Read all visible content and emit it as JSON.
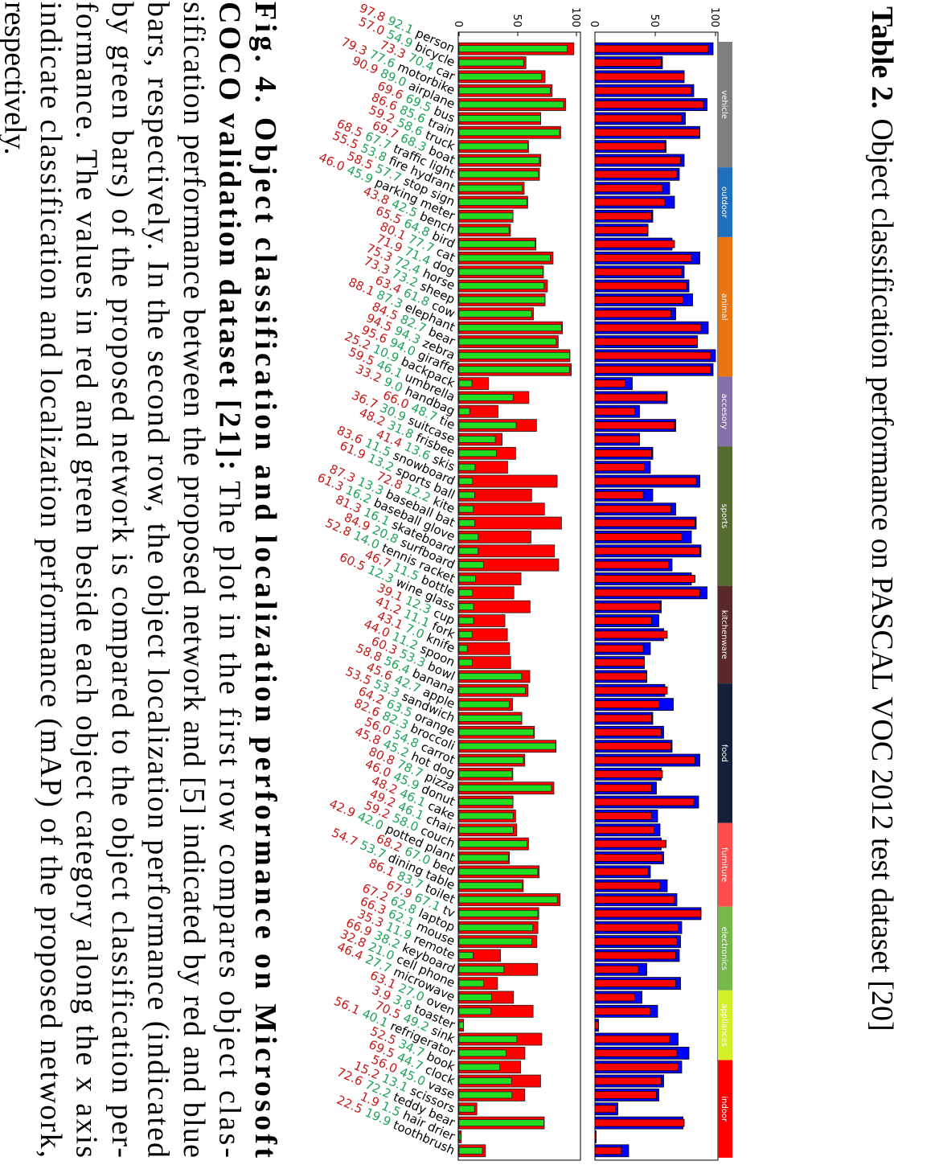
{
  "title": {
    "label": "Table 2.",
    "text": "Object classification performance on PASCAL VOC 2012 test dataset [20]"
  },
  "chart_data": [
    {
      "type": "grouped_bar",
      "series": [
        {
          "color": "#0000ff"
        },
        {
          "color": "#ff0000"
        }
      ],
      "ylim": [
        0,
        100
      ],
      "yticks": [
        0,
        50,
        100
      ],
      "groups": [
        {
          "name": "vehicle",
          "color": "#808080",
          "values": [
            [
              98,
              94
            ],
            [
              56,
              55
            ],
            [
              74,
              74
            ],
            [
              82,
              80
            ],
            [
              93,
              90
            ],
            [
              75,
              72
            ],
            [
              87,
              87
            ],
            [
              59,
              58
            ],
            [
              74,
              71
            ]
          ]
        },
        {
          "name": "outdoor",
          "color": "#1f6fbf",
          "values": [
            [
              70,
              68
            ],
            [
              62,
              56
            ],
            [
              66,
              58
            ],
            [
              48,
              47
            ],
            [
              44,
              44
            ]
          ]
        },
        {
          "name": "animal",
          "color": "#e87511",
          "values": [
            [
              64,
              66
            ],
            [
              87,
              80
            ],
            [
              74,
              72
            ],
            [
              78,
              76
            ],
            [
              81,
              73
            ],
            [
              67,
              63
            ],
            [
              94,
              88
            ],
            [
              85,
              85
            ],
            [
              100,
              96
            ],
            [
              98,
              96
            ]
          ]
        },
        {
          "name": "accesory",
          "color": "#8470a8",
          "values": [
            [
              31,
              25
            ],
            [
              60,
              59
            ],
            [
              37,
              33
            ],
            [
              67,
              66
            ],
            [
              37,
              37
            ]
          ]
        },
        {
          "name": "sports",
          "color": "#556b2f",
          "values": [
            [
              48,
              47
            ],
            [
              46,
              41
            ],
            [
              87,
              84
            ],
            [
              48,
              40
            ],
            [
              67,
              63
            ],
            [
              84,
              83
            ],
            [
              80,
              72
            ],
            [
              88,
              87
            ],
            [
              64,
              61
            ],
            [
              80,
              83
            ]
          ]
        },
        {
          "name": "kitchenware",
          "color": "#5a2828",
          "values": [
            [
              93,
              87
            ],
            [
              55,
              54
            ],
            [
              53,
              47
            ],
            [
              57,
              60
            ],
            [
              46,
              40
            ],
            [
              41,
              41
            ],
            [
              43,
              43
            ]
          ]
        },
        {
          "name": "food",
          "color": "#14203a",
          "values": [
            [
              58,
              60
            ],
            [
              65,
              53
            ],
            [
              48,
              47
            ],
            [
              57,
              55
            ],
            [
              64,
              63
            ],
            [
              87,
              83
            ],
            [
              55,
              56
            ],
            [
              51,
              47
            ],
            [
              86,
              82
            ],
            [
              52,
              47
            ]
          ]
        },
        {
          "name": "furniture",
          "color": "#ff4d4d",
          "values": [
            [
              54,
              49
            ],
            [
              55,
              59
            ],
            [
              57,
              56
            ],
            [
              46,
              44
            ],
            [
              60,
              54
            ],
            [
              68,
              66
            ]
          ]
        },
        {
          "name": "electronics",
          "color": "#77b84a",
          "values": [
            [
              88,
              88
            ],
            [
              72,
              69
            ],
            [
              71,
              68
            ],
            [
              70,
              67
            ],
            [
              43,
              36
            ],
            [
              71,
              67
            ]
          ]
        },
        {
          "name": "appliances",
          "color": "#d4ee2a",
          "values": [
            [
              39,
              33
            ],
            [
              52,
              46
            ],
            [
              3,
              3
            ],
            [
              69,
              62
            ],
            [
              78,
              68
            ]
          ]
        },
        {
          "name": "indoor",
          "color": "#ff0000",
          "values": [
            [
              72,
              69
            ],
            [
              57,
              55
            ],
            [
              53,
              51
            ],
            [
              19,
              17
            ],
            [
              73,
              74
            ],
            [
              1,
              1
            ],
            [
              28,
              22
            ]
          ]
        }
      ]
    },
    {
      "type": "bar",
      "ylim": [
        0,
        100
      ],
      "yticks": [
        0,
        50,
        100
      ],
      "categories": [
        "person",
        "bicycle",
        "car",
        "motorbike",
        "airplane",
        "bus",
        "train",
        "truck",
        "boat",
        "traffic light",
        "fire hydrant",
        "stop sign",
        "parking meter",
        "bench",
        "bird",
        "cat",
        "dog",
        "horse",
        "sheep",
        "cow",
        "elephant",
        "bear",
        "zebra",
        "giraffe",
        "backpack",
        "umbrella",
        "handbag",
        "tie",
        "suitcase",
        "frisbee",
        "skis",
        "snowboard",
        "sports ball",
        "kite",
        "baseball bat",
        "baseball glove",
        "skateboard",
        "surfboard",
        "tennis racket",
        "bottle",
        "wine glass",
        "cup",
        "fork",
        "knife",
        "spoon",
        "bowl",
        "banana",
        "apple",
        "sandwich",
        "orange",
        "broccoli",
        "carrot",
        "hot dog",
        "pizza",
        "donut",
        "cake",
        "chair",
        "couch",
        "potted plant",
        "bed",
        "dining table",
        "toilet",
        "tv",
        "laptop",
        "mouse",
        "remote",
        "keyboard",
        "cell phone",
        "microwave",
        "oven",
        "toaster",
        "sink",
        "refrigerator",
        "book",
        "clock",
        "vase",
        "scissors",
        "teddy bear",
        "hair drier",
        "toothbrush"
      ],
      "series": [
        {
          "color": "#ff0000",
          "label_color": "#c41a1a",
          "values": [
            97.8,
            57.0,
            73.3,
            79.3,
            90.9,
            69.6,
            86.6,
            59.2,
            69.7,
            68.5,
            55.5,
            58.5,
            46.0,
            43.8,
            65.5,
            80.1,
            71.9,
            75.3,
            73.3,
            63.4,
            88.1,
            84.5,
            94.5,
            95.6,
            25.2,
            59.5,
            33.2,
            66.0,
            36.7,
            48.2,
            41.4,
            83.6,
            61.9,
            72.8,
            87.3,
            61.3,
            81.3,
            84.9,
            52.8,
            46.7,
            60.5,
            39.1,
            41.2,
            43.1,
            44.0,
            60.3,
            58.8,
            45.6,
            53.5,
            64.2,
            82.6,
            56.0,
            45.8,
            80.8,
            46.0,
            48.2,
            49.2,
            59.2,
            42.9,
            68.2,
            54.7,
            86.1,
            67.9,
            67.2,
            66.3,
            35.3,
            66.9,
            32.8,
            46.4,
            63.1,
            3.9,
            70.5,
            56.1,
            52.5,
            69.5,
            56.0,
            15.2,
            72.6,
            1.9,
            22.5
          ],
          "value_labels": [
            "97.8",
            "57.0",
            "73.3",
            "79.3",
            "90.9",
            "69.6",
            "86.6",
            "59.2",
            "69.7",
            "68.5",
            "55.5",
            "58.5",
            "46.0",
            "43.8",
            "65.5",
            "80.1",
            "71.9",
            "75.3",
            "73.3",
            "63.4",
            "88.1",
            "84.5",
            "94.5",
            "95.6",
            "25.2",
            "59.5",
            "33.2",
            "66.0",
            "36.7",
            "48.2",
            "41.4",
            "83.6",
            "61.9",
            "72.8",
            "87.3",
            "61.3",
            "81.3",
            "84.9",
            "52.8",
            "46.7",
            "60.5",
            "39.1",
            "41.2",
            "43.1",
            "44.0",
            "60.3",
            "58.8",
            "45.6",
            "53.5",
            "64.2",
            "82.6",
            "56.0",
            "45.8",
            "80.8",
            "46.0",
            "48.2",
            "49.2",
            "59.2",
            "42.9",
            "68.2",
            "54.7",
            "86.1",
            "67.9",
            "67.2",
            "66.3",
            "35.3",
            "66.9",
            "32.8",
            "46.4",
            "63.1",
            "3.9",
            "70.5",
            "56.1",
            "52.5",
            "69.5",
            "56.0",
            "15.2",
            "72.6",
            "1.9",
            "22.5"
          ]
        },
        {
          "color": "#22dd22",
          "label_color": "#1fa35a",
          "values": [
            92.1,
            54.9,
            70.4,
            77.6,
            89.0,
            69.5,
            85.6,
            58.6,
            68.3,
            67.7,
            53.8,
            57.7,
            45.9,
            42.5,
            64.8,
            77.7,
            71.4,
            72.4,
            73.2,
            61.8,
            87.3,
            82.7,
            94.3,
            94.0,
            10.9,
            46.1,
            9.0,
            48.7,
            30.9,
            31.8,
            13.6,
            11.5,
            13.2,
            12.2,
            13.3,
            16.2,
            16.1,
            20.8,
            14.0,
            11.5,
            12.3,
            12.3,
            11.1,
            7.0,
            11.2,
            53.3,
            56.4,
            42.7,
            53.3,
            63.5,
            82.3,
            54.8,
            45.2,
            78.7,
            45.9,
            46.1,
            46.1,
            58.0,
            42.0,
            67.0,
            53.7,
            83.7,
            67.1,
            62.8,
            62.1,
            11.9,
            38.2,
            21.0,
            27.7,
            27.0,
            3.8,
            49.2,
            40.1,
            34.7,
            44.7,
            45.0,
            13.1,
            72.2,
            1.5,
            19.9
          ],
          "value_labels": [
            "92.1",
            "54.9",
            "70.4",
            "77.6",
            "89.0",
            "69.5",
            "85.6",
            "58.6",
            "68.3",
            "67.7",
            "53.8",
            "57.7",
            "45.9",
            "42.5",
            "64.8",
            "77.7",
            "71.4",
            "72.4",
            "73.2",
            "61.8",
            "87.3",
            "82.7",
            "94.3",
            "94.0",
            "10.9",
            "46.1",
            "9.0",
            "48.7",
            "30.9",
            "31.8",
            "13.6",
            "11.5",
            "13.2",
            "12.2",
            "13.3",
            "16.2",
            "16.1",
            "20.8",
            "14.0",
            "11.5",
            "12.3",
            "12.3",
            "11.1",
            "7.0",
            "11.2",
            "53.3",
            "56.4",
            "42.7",
            "53.3",
            "63.5",
            "82.3",
            "54.8",
            "45.2",
            "78.7",
            "45.9",
            "46.1",
            "46.1",
            "58.0",
            "42.0",
            "67.0",
            "53.7",
            "83.7",
            "67.1",
            "62.8",
            "62.1",
            "11.9",
            "38.2",
            "21.0",
            "27.7",
            "27.0",
            "3.8",
            "49.2",
            "40.1",
            "34.7",
            "44.7",
            "45.0",
            "13.1",
            "72.2",
            "1.5",
            "19.9"
          ]
        }
      ]
    }
  ],
  "caption": {
    "lines": [
      {
        "bold": "Fig. 4. Object classification and localization performance on Microsoft"
      },
      {
        "bold": "COCO validation dataset [21]:",
        "text": "The plot in the first row compares object clas-"
      },
      {
        "text": "sification performance between the proposed network and [5] indicated by red and blue"
      },
      {
        "text": "bars, respectively. In the second row, the object localization performance (indicated"
      },
      {
        "text": "by green bars) of the proposed network is compared to the object classification per-"
      },
      {
        "text": "formance. The values in red and green beside each object category along the x axis"
      },
      {
        "text": "indicate classification and localization performance (mAP) of the proposed network,"
      },
      {
        "text": "respectively."
      }
    ]
  }
}
